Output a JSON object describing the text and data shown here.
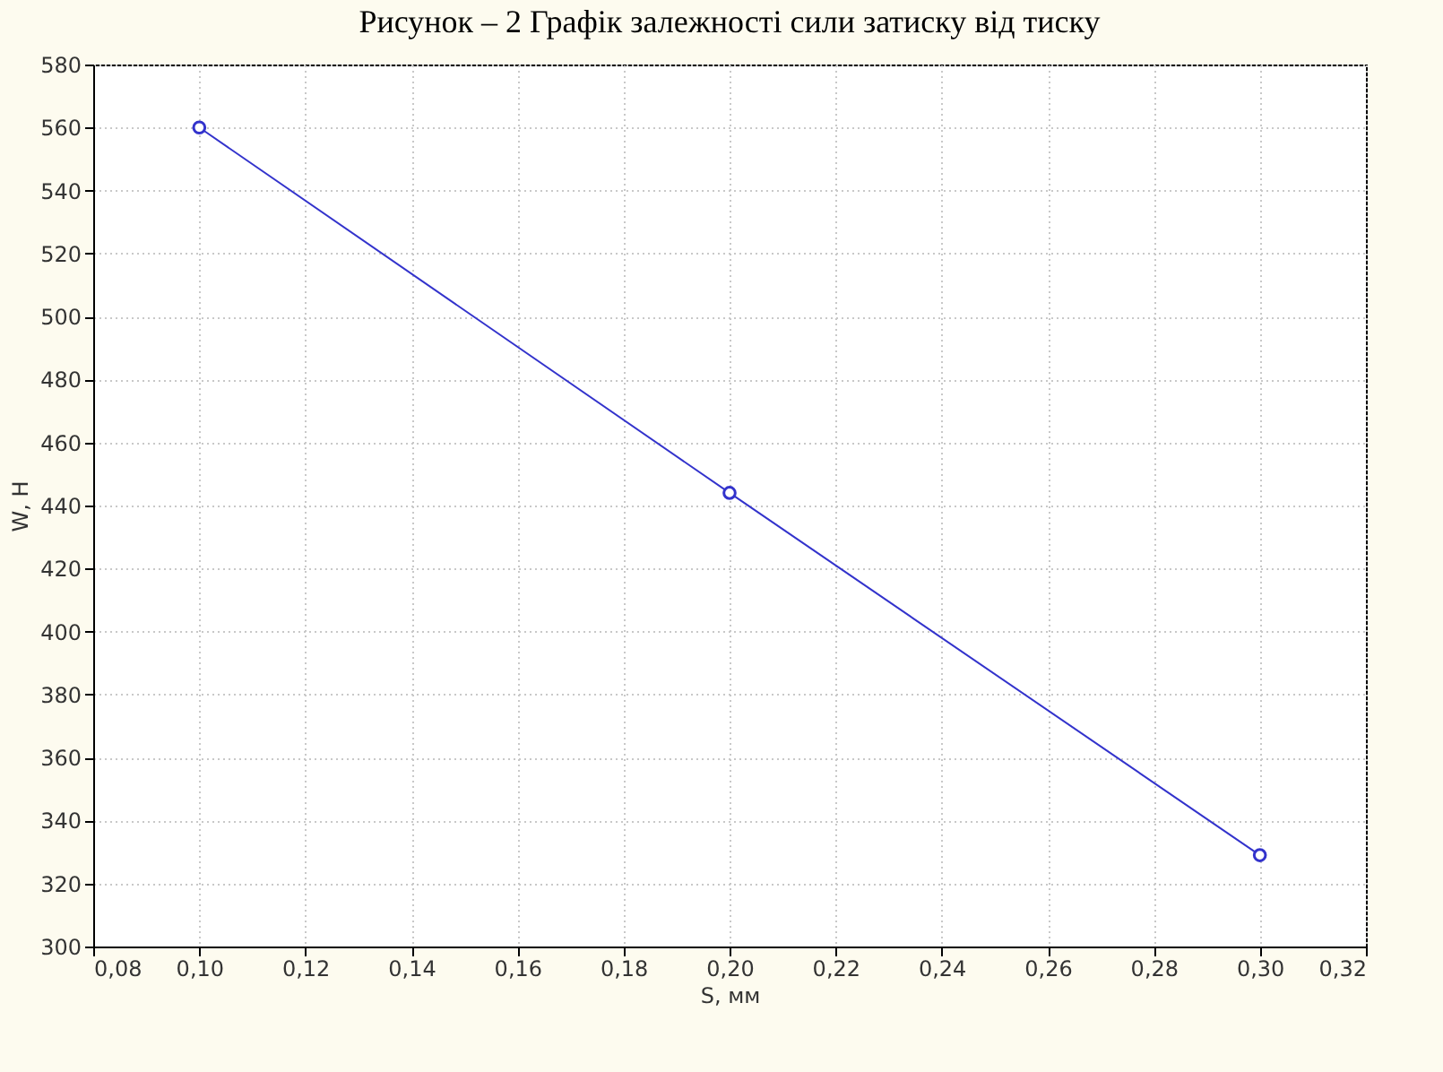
{
  "chart_data": {
    "type": "line",
    "title": "Рисунок – 2 Графік залежності сили затиску від тиску",
    "xlabel": "S, мм",
    "ylabel": "W, H",
    "x": [
      0.1,
      0.2,
      0.3
    ],
    "series": [
      {
        "color": "#3333cc",
        "values": [
          560,
          444,
          329
        ]
      }
    ],
    "xlim": [
      0.08,
      0.32
    ],
    "xticks": [
      {
        "value": 0.08,
        "label": "0,08"
      },
      {
        "value": 0.1,
        "label": "0,10"
      },
      {
        "value": 0.12,
        "label": "0,12"
      },
      {
        "value": 0.14,
        "label": "0,14"
      },
      {
        "value": 0.16,
        "label": "0,16"
      },
      {
        "value": 0.18,
        "label": "0,18"
      },
      {
        "value": 0.2,
        "label": "0,20"
      },
      {
        "value": 0.22,
        "label": "0,22"
      },
      {
        "value": 0.24,
        "label": "0,24"
      },
      {
        "value": 0.26,
        "label": "0,26"
      },
      {
        "value": 0.28,
        "label": "0,28"
      },
      {
        "value": 0.3,
        "label": "0,30"
      },
      {
        "value": 0.32,
        "label": "0,32"
      }
    ],
    "ylim": [
      300,
      580
    ],
    "yticks": [
      300,
      320,
      340,
      360,
      380,
      400,
      420,
      440,
      460,
      480,
      500,
      520,
      540,
      560,
      580
    ],
    "grid": true,
    "marker": "circle",
    "line_style": "solid"
  }
}
